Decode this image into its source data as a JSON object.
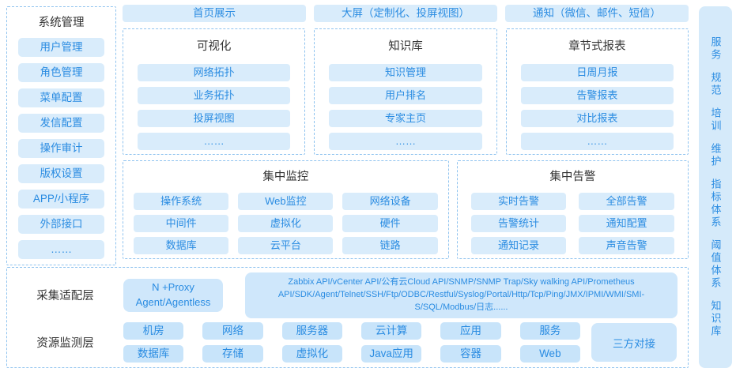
{
  "palette": {
    "pill_bg": "#d9ecfb",
    "pill_bg_dark": "#c8e4fa",
    "box_bg": "#cfe7fb",
    "rail_bg": "#d5eafa",
    "accent_text": "#2a8ce2",
    "title_text": "#333333",
    "dashed_border": "#8fc3ef"
  },
  "sidebar": {
    "title": "系统管理",
    "items": [
      "用户管理",
      "角色管理",
      "菜单配置",
      "发信配置",
      "操作审计",
      "版权设置",
      "APP/小程序",
      "外部接口",
      "……"
    ]
  },
  "top_buttons": [
    "首页展示",
    "大屏（定制化、投屏视图）",
    "通知（微信、邮件、短信）"
  ],
  "feature_panels": [
    {
      "title": "可视化",
      "items": [
        "网络拓扑",
        "业务拓扑",
        "投屏视图",
        "……"
      ]
    },
    {
      "title": "知识库",
      "items": [
        "知识管理",
        "用户排名",
        "专家主页",
        "……"
      ]
    },
    {
      "title": "章节式报表",
      "items": [
        "日周月报",
        "告警报表",
        "对比报表",
        "……"
      ]
    }
  ],
  "monitor_panel": {
    "title": "集中监控",
    "items": [
      "操作系统",
      "Web监控",
      "网络设备",
      "中间件",
      "虚拟化",
      "硬件",
      "数据库",
      "云平台",
      "链路"
    ]
  },
  "alarm_panel": {
    "title": "集中告警",
    "items": [
      "实时告警",
      "全部告警",
      "告警统计",
      "通知配置",
      "通知记录",
      "声音告警"
    ]
  },
  "bottom": {
    "adapter_label": "采集适配层",
    "proxy_button": "N +Proxy Agent/Agentless",
    "api_box": "Zabbix API/vCenter API/公有云Cloud API/SNMP/SNMP Trap/Sky walking API/Prometheus API/SDK/Agent/Telnet/SSH/Ftp/ODBC/Restful/Syslog/Portal/Http/Tcp/Ping/JMX/IPMI/WMI/SMI-S/SQL/Modbus/日志......",
    "resource_label": "资源监测层",
    "resource_row1": [
      "机房",
      "网络",
      "服务器",
      "云计算",
      "应用",
      "服务"
    ],
    "resource_row2": [
      "数据库",
      "存储",
      "虚拟化",
      "Java应用",
      "容器",
      "Web"
    ],
    "third_party": "三方对接"
  },
  "right_rail": [
    "服务",
    "规范",
    "培训",
    "维护",
    "指标体系",
    "阈值体系",
    "知识库"
  ]
}
